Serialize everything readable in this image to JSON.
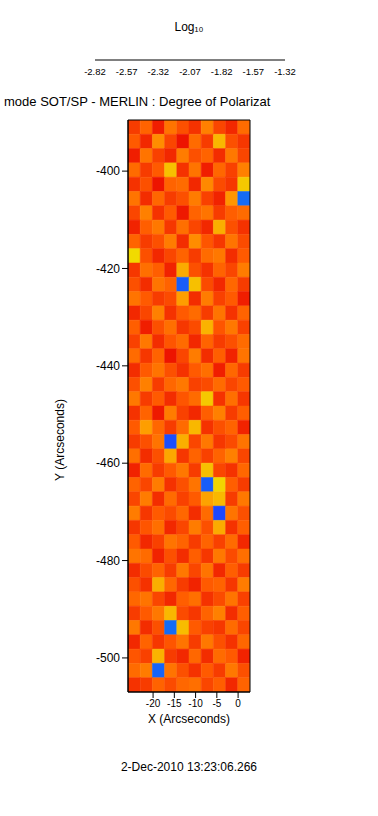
{
  "chart_data": {
    "type": "heatmap",
    "title": "mode SOT/SP - MERLIN : Degree of Polarizat",
    "subtitle": "2-Dec-2010 13:23:06.266",
    "x_label": "X (Arcseconds)",
    "y_label": "Y (Arcseconds)",
    "xlim": [
      -25.9,
      2.8
    ],
    "xticks": [
      -20,
      -15,
      -10,
      -5,
      0
    ],
    "ylim": [
      -507,
      -389.5
    ],
    "yticks": [
      -500,
      -480,
      -460,
      -440,
      -420,
      -400
    ],
    "colorbar": {
      "label": "Log₁₀",
      "range": [
        -2.82,
        -1.32
      ],
      "ticks": [
        -2.82,
        -2.57,
        -2.32,
        -2.07,
        -1.82,
        -1.57,
        -1.32
      ]
    },
    "cells": [
      [
        -2.7,
        -2.62,
        -2.76,
        -2.58,
        -2.66,
        -2.72,
        -2.55,
        -2.68,
        -2.74,
        -2.6
      ],
      [
        -2.64,
        -2.74,
        -2.52,
        -2.68,
        -2.78,
        -2.6,
        -2.7,
        -2.42,
        -2.66,
        -2.71
      ],
      [
        -2.76,
        -2.58,
        -2.69,
        -2.74,
        -2.56,
        -2.66,
        -2.62,
        -2.73,
        -2.57,
        -2.68
      ],
      [
        -2.6,
        -2.7,
        -2.64,
        -2.4,
        -2.72,
        -2.58,
        -2.76,
        -2.61,
        -2.69,
        -2.55
      ],
      [
        -2.72,
        -2.66,
        -2.78,
        -2.62,
        -2.6,
        -2.74,
        -2.53,
        -2.67,
        -2.71,
        -2.38
      ],
      [
        -2.58,
        -2.73,
        -2.61,
        -2.7,
        -2.66,
        -2.56,
        -2.69,
        -2.75,
        -2.5,
        -1.8
      ],
      [
        -2.68,
        -2.55,
        -2.72,
        -2.64,
        -2.77,
        -2.62,
        -2.58,
        -2.7,
        -2.63,
        -2.6
      ],
      [
        -2.75,
        -2.63,
        -2.57,
        -2.71,
        -2.59,
        -2.68,
        -2.74,
        -2.44,
        -2.66,
        -2.72
      ],
      [
        -2.62,
        -2.7,
        -2.66,
        -2.56,
        -2.73,
        -2.52,
        -2.65,
        -2.71,
        -2.58,
        -2.67
      ],
      [
        -2.34,
        -2.66,
        -2.74,
        -2.68,
        -2.62,
        -2.7,
        -2.6,
        -2.57,
        -2.73,
        -2.64
      ],
      [
        -2.71,
        -2.59,
        -2.63,
        -2.75,
        -2.45,
        -2.66,
        -2.72,
        -2.62,
        -2.68,
        -2.56
      ],
      [
        -2.66,
        -2.73,
        -2.58,
        -2.62,
        -1.78,
        -2.4,
        -2.67,
        -2.74,
        -2.61,
        -2.7
      ],
      [
        -2.58,
        -2.64,
        -2.7,
        -2.67,
        -2.48,
        -2.73,
        -2.56,
        -2.69,
        -2.64,
        -2.76
      ],
      [
        -2.74,
        -2.68,
        -2.55,
        -2.72,
        -2.64,
        -2.6,
        -2.7,
        -2.58,
        -2.72,
        -2.62
      ],
      [
        -2.63,
        -2.76,
        -2.66,
        -2.59,
        -2.71,
        -2.67,
        -2.43,
        -2.65,
        -2.57,
        -2.69
      ],
      [
        -2.69,
        -2.57,
        -2.73,
        -2.65,
        -2.6,
        -2.74,
        -2.62,
        -2.7,
        -2.66,
        -2.6
      ],
      [
        -2.6,
        -2.71,
        -2.62,
        -2.78,
        -2.68,
        -2.56,
        -2.73,
        -2.63,
        -2.75,
        -2.58
      ],
      [
        -2.73,
        -2.64,
        -2.58,
        -2.66,
        -2.72,
        -2.64,
        -2.59,
        -2.76,
        -2.61,
        -2.7
      ],
      [
        -2.66,
        -2.55,
        -2.7,
        -2.61,
        -2.57,
        -2.69,
        -2.67,
        -2.6,
        -2.68,
        -2.64
      ],
      [
        -2.57,
        -2.7,
        -2.64,
        -2.73,
        -2.65,
        -2.6,
        -2.38,
        -2.72,
        -2.59,
        -2.71
      ],
      [
        -2.72,
        -2.62,
        -2.77,
        -2.56,
        -2.69,
        -2.74,
        -2.63,
        -2.55,
        -2.7,
        -2.63
      ],
      [
        -2.64,
        -2.48,
        -2.61,
        -2.7,
        -2.6,
        -2.42,
        -2.72,
        -2.66,
        -2.62,
        -2.75
      ],
      [
        -2.7,
        -2.66,
        -2.58,
        -1.76,
        -2.44,
        -2.68,
        -2.57,
        -2.71,
        -2.67,
        -2.58
      ],
      [
        -2.59,
        -2.73,
        -2.66,
        -2.46,
        -2.71,
        -2.62,
        -2.69,
        -2.62,
        -2.55,
        -2.68
      ],
      [
        -2.75,
        -2.6,
        -2.7,
        -2.64,
        -2.57,
        -2.7,
        -2.4,
        -2.68,
        -2.72,
        -2.61
      ],
      [
        -2.62,
        -2.68,
        -2.56,
        -2.72,
        -2.66,
        -2.58,
        -1.78,
        -2.35,
        -2.63,
        -2.7
      ],
      [
        -2.68,
        -2.56,
        -2.73,
        -2.6,
        -2.69,
        -2.64,
        -2.47,
        -2.42,
        -2.7,
        -2.57
      ],
      [
        -2.56,
        -2.71,
        -2.64,
        -2.67,
        -2.61,
        -2.73,
        -2.6,
        -1.75,
        -2.58,
        -2.66
      ],
      [
        -2.71,
        -2.65,
        -2.59,
        -2.74,
        -2.68,
        -2.56,
        -2.66,
        -2.45,
        -2.72,
        -2.63
      ],
      [
        -2.64,
        -2.74,
        -2.69,
        -2.58,
        -2.62,
        -2.7,
        -2.62,
        -2.69,
        -2.6,
        -2.74
      ],
      [
        -2.58,
        -2.6,
        -2.75,
        -2.66,
        -2.73,
        -2.63,
        -2.71,
        -2.57,
        -2.67,
        -2.59
      ],
      [
        -2.73,
        -2.67,
        -2.62,
        -2.7,
        -2.57,
        -2.68,
        -2.58,
        -2.74,
        -2.63,
        -2.7
      ],
      [
        -2.66,
        -2.72,
        -2.44,
        -2.61,
        -2.7,
        -2.75,
        -2.64,
        -2.62,
        -2.71,
        -2.56
      ],
      [
        -2.61,
        -2.58,
        -2.68,
        -2.74,
        -2.63,
        -2.59,
        -2.72,
        -2.67,
        -2.58,
        -2.69
      ],
      [
        -2.7,
        -2.64,
        -2.57,
        -2.42,
        -2.67,
        -2.71,
        -2.62,
        -2.55,
        -2.73,
        -2.63
      ],
      [
        -2.57,
        -2.73,
        -2.66,
        -1.8,
        -2.41,
        -2.64,
        -2.69,
        -2.71,
        -2.6,
        -2.68
      ],
      [
        -2.74,
        -2.62,
        -2.71,
        -2.65,
        -2.58,
        -2.7,
        -2.57,
        -2.66,
        -2.72,
        -2.61
      ],
      [
        -2.65,
        -2.69,
        -2.43,
        -2.7,
        -2.74,
        -2.61,
        -2.73,
        -2.6,
        -2.64,
        -2.75
      ],
      [
        -2.6,
        -2.56,
        -1.79,
        -2.58,
        -2.66,
        -2.72,
        -2.64,
        -2.7,
        -2.57,
        -2.66
      ],
      [
        -2.72,
        -2.7,
        -2.62,
        -2.67,
        -2.61,
        -2.59,
        -2.68,
        -2.63,
        -2.74,
        -2.62
      ]
    ]
  }
}
